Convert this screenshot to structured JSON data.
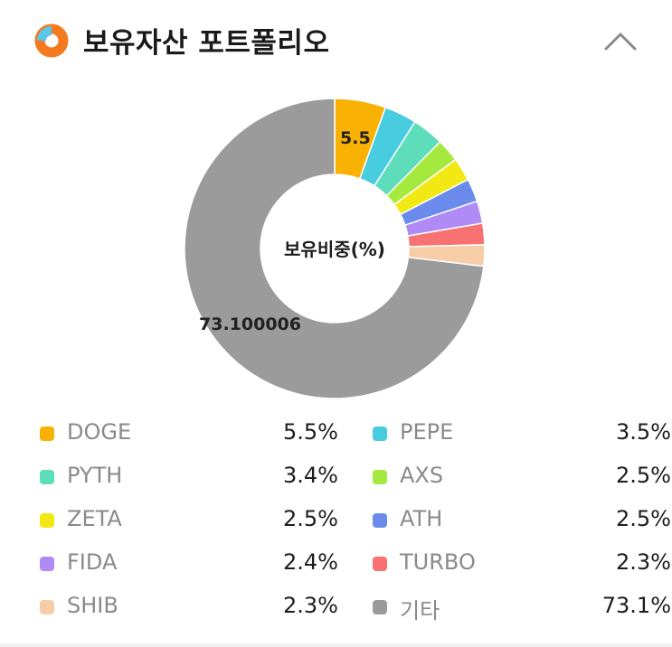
{
  "header": {
    "title": "보유자산 포트폴리오",
    "icon": "donut-chart-icon",
    "collapse_icon": "chevron-up-icon"
  },
  "chart_data": {
    "type": "pie",
    "center_label": "보유비중(%)",
    "categories": [
      "DOGE",
      "PEPE",
      "PYTH",
      "AXS",
      "ZETA",
      "ATH",
      "FIDA",
      "TURBO",
      "SHIB",
      "기타"
    ],
    "values": [
      5.5,
      3.5,
      3.4,
      2.5,
      2.5,
      2.5,
      2.4,
      2.3,
      2.3,
      73.1
    ],
    "colors": [
      "#F9B104",
      "#48CCE0",
      "#5EDDBB",
      "#A6E93E",
      "#F2E914",
      "#6B8BEC",
      "#B08BF5",
      "#F87272",
      "#F7CDA8",
      "#9B9B9B"
    ],
    "slice_labels": {
      "first": "5.5",
      "last": "73.100006"
    },
    "legend_placement": "bottom"
  },
  "legend": [
    {
      "name": "DOGE",
      "value": "5.5%"
    },
    {
      "name": "PEPE",
      "value": "3.5%"
    },
    {
      "name": "PYTH",
      "value": "3.4%"
    },
    {
      "name": "AXS",
      "value": "2.5%"
    },
    {
      "name": "ZETA",
      "value": "2.5%"
    },
    {
      "name": "ATH",
      "value": "2.5%"
    },
    {
      "name": "FIDA",
      "value": "2.4%"
    },
    {
      "name": "TURBO",
      "value": "2.3%"
    },
    {
      "name": "SHIB",
      "value": "2.3%"
    },
    {
      "name": "기타",
      "value": "73.1%"
    }
  ]
}
